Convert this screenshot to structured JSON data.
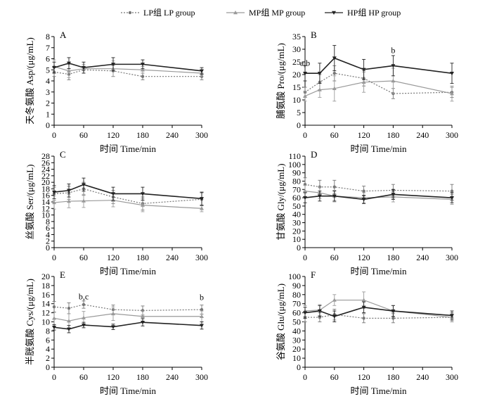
{
  "legend": {
    "items": [
      {
        "label": "LP组 LP group",
        "color": "#777777",
        "dash": "2,2",
        "marker": "circle"
      },
      {
        "label": "MP组 MP group",
        "color": "#9a9a9a",
        "dash": "",
        "marker": "triangle"
      },
      {
        "label": "HP组 HP group",
        "color": "#222222",
        "dash": "",
        "marker": "triangle-down"
      }
    ]
  },
  "chart_data": [
    {
      "type": "line",
      "panel": "A",
      "ylabel": "天冬氨酸 Asp/(μg/mL)",
      "xlabel": "时间 Time/min",
      "ylim": [
        0,
        8
      ],
      "yticks": [
        0,
        1,
        2,
        3,
        4,
        5,
        6,
        7,
        8
      ],
      "xlim": [
        0,
        300
      ],
      "xticks": [
        0,
        60,
        120,
        180,
        240,
        300
      ],
      "x": [
        0,
        30,
        60,
        120,
        180,
        300
      ],
      "series": [
        {
          "name": "LP组 LP group",
          "values": [
            4.8,
            4.6,
            5.0,
            4.9,
            4.4,
            4.4
          ],
          "err": [
            0.4,
            0.5,
            0.3,
            0.5,
            0.3,
            0.3
          ]
        },
        {
          "name": "MP组 MP group",
          "values": [
            5.3,
            4.9,
            5.1,
            5.1,
            5.0,
            4.7
          ],
          "err": [
            0.6,
            0.6,
            0.4,
            0.7,
            0.3,
            0.3
          ]
        },
        {
          "name": "HP组 HP group",
          "values": [
            5.2,
            5.6,
            5.2,
            5.5,
            5.5,
            4.9
          ],
          "err": [
            0.5,
            0.5,
            0.5,
            0.6,
            0.4,
            0.3
          ]
        }
      ],
      "annotations": []
    },
    {
      "type": "line",
      "panel": "B",
      "ylabel": "脯氨酸 Pro/(μg/mL)",
      "xlabel": "时间 Time/min",
      "ylim": [
        0,
        35
      ],
      "yticks": [
        0,
        5,
        10,
        15,
        20,
        25,
        30,
        35
      ],
      "xlim": [
        0,
        300
      ],
      "xticks": [
        0,
        60,
        120,
        180,
        240,
        300
      ],
      "x": [
        0,
        30,
        60,
        120,
        180,
        300
      ],
      "series": [
        {
          "name": "LP组 LP group",
          "values": [
            13.0,
            17.0,
            20.5,
            18.5,
            12.5,
            13.0
          ],
          "err": [
            2,
            3,
            3,
            3,
            2,
            2
          ]
        },
        {
          "name": "MP组 MP group",
          "values": [
            11.5,
            14.0,
            14.5,
            17.0,
            17.5,
            12.5
          ],
          "err": [
            2,
            3,
            5,
            4,
            5,
            3
          ]
        },
        {
          "name": "HP组 HP group",
          "values": [
            20.5,
            20.5,
            26.5,
            22.0,
            23.5,
            20.5
          ],
          "err": [
            3,
            4,
            5,
            4,
            4,
            4
          ]
        }
      ],
      "annotations": [
        {
          "text": "a,b",
          "x": 0,
          "y": 23.5
        },
        {
          "text": "b",
          "x": 180,
          "y": 28.5
        }
      ]
    },
    {
      "type": "line",
      "panel": "C",
      "ylabel": "丝氨酸 Ser/(μg/mL)",
      "xlabel": "时间 Time/min",
      "ylim": [
        0,
        28
      ],
      "yticks": [
        0,
        2,
        4,
        6,
        8,
        10,
        12,
        14,
        16,
        18,
        20,
        22,
        24,
        26,
        28
      ],
      "xlim": [
        0,
        300
      ],
      "xticks": [
        0,
        60,
        120,
        180,
        240,
        300
      ],
      "x": [
        0,
        30,
        60,
        120,
        180,
        300
      ],
      "series": [
        {
          "name": "LP组 LP group",
          "values": [
            16.5,
            16.8,
            18.0,
            15.5,
            13.5,
            14.8
          ],
          "err": [
            2,
            2,
            2,
            2,
            2,
            2
          ]
        },
        {
          "name": "MP组 MP group",
          "values": [
            13.8,
            14.2,
            14.3,
            14.5,
            13.0,
            12.0
          ],
          "err": [
            2,
            2,
            2,
            2,
            2,
            1
          ]
        },
        {
          "name": "HP组 HP group",
          "values": [
            17.0,
            17.5,
            19.3,
            16.5,
            16.5,
            15.0
          ],
          "err": [
            2,
            2,
            2,
            2,
            2,
            2
          ]
        }
      ],
      "annotations": []
    },
    {
      "type": "line",
      "panel": "D",
      "ylabel": "甘氨酸 Gly/(μg/mL)",
      "xlabel": "时间 Time/min",
      "ylim": [
        0,
        110
      ],
      "yticks": [
        0,
        10,
        20,
        30,
        40,
        50,
        60,
        70,
        80,
        90,
        100,
        110
      ],
      "xlim": [
        0,
        300
      ],
      "xticks": [
        0,
        60,
        120,
        180,
        240,
        300
      ],
      "x": [
        0,
        30,
        60,
        120,
        180,
        300
      ],
      "series": [
        {
          "name": "LP组 LP group",
          "values": [
            76,
            73,
            73,
            68,
            69,
            68
          ],
          "err": [
            8,
            8,
            8,
            6,
            7,
            8
          ]
        },
        {
          "name": "MP组 MP group",
          "values": [
            68,
            66,
            62,
            60,
            61,
            58
          ],
          "err": [
            7,
            7,
            7,
            6,
            6,
            6
          ]
        },
        {
          "name": "HP组 HP group",
          "values": [
            60,
            62,
            62,
            58,
            64,
            60
          ],
          "err": [
            6,
            6,
            6,
            5,
            6,
            6
          ]
        }
      ],
      "annotations": []
    },
    {
      "type": "line",
      "panel": "E",
      "ylabel": "半胱氨酸 Cys/(μg/mL)",
      "xlabel": "时间 Time/min",
      "ylim": [
        0,
        20
      ],
      "yticks": [
        0,
        2,
        4,
        6,
        8,
        10,
        12,
        14,
        16,
        18,
        20
      ],
      "xlim": [
        0,
        300
      ],
      "xticks": [
        0,
        60,
        120,
        180,
        240,
        300
      ],
      "x": [
        0,
        30,
        60,
        120,
        180,
        300
      ],
      "series": [
        {
          "name": "LP组 LP group",
          "values": [
            13.3,
            13.0,
            13.8,
            12.7,
            12.5,
            12.7
          ],
          "err": [
            1.2,
            1.2,
            0.8,
            1.0,
            1.0,
            1.0
          ]
        },
        {
          "name": "MP组 MP group",
          "values": [
            10.8,
            10.2,
            10.9,
            11.8,
            11.2,
            11.2
          ],
          "err": [
            1.4,
            1.6,
            1.4,
            1.5,
            1.2,
            1.2
          ]
        },
        {
          "name": "HP组 HP group",
          "values": [
            8.8,
            8.4,
            9.3,
            8.9,
            9.9,
            9.2
          ],
          "err": [
            0.6,
            0.8,
            0.6,
            0.6,
            0.8,
            0.8
          ]
        }
      ],
      "annotations": [
        {
          "text": "b,c",
          "x": 60,
          "y": 15.0
        },
        {
          "text": "b",
          "x": 300,
          "y": 14.8
        }
      ]
    },
    {
      "type": "line",
      "panel": "F",
      "ylabel": "谷氨酸 Glu/(μg/mL)",
      "xlabel": "时间 Time/min",
      "ylim": [
        0,
        100
      ],
      "yticks": [
        0,
        10,
        20,
        30,
        40,
        50,
        60,
        70,
        80,
        90,
        100
      ],
      "xlim": [
        0,
        300
      ],
      "xticks": [
        0,
        60,
        120,
        180,
        240,
        300
      ],
      "x": [
        0,
        30,
        60,
        120,
        180,
        300
      ],
      "series": [
        {
          "name": "LP组 LP group",
          "values": [
            55,
            55,
            58,
            54,
            54,
            55
          ],
          "err": [
            5,
            5,
            6,
            5,
            5,
            5
          ]
        },
        {
          "name": "MP组 MP group",
          "values": [
            62,
            63,
            74,
            74,
            62,
            55
          ],
          "err": [
            6,
            6,
            6,
            9,
            6,
            5
          ]
        },
        {
          "name": "HP组 HP group",
          "values": [
            60,
            62,
            56,
            66,
            62,
            57
          ],
          "err": [
            6,
            6,
            6,
            6,
            6,
            5
          ]
        }
      ],
      "annotations": []
    }
  ]
}
